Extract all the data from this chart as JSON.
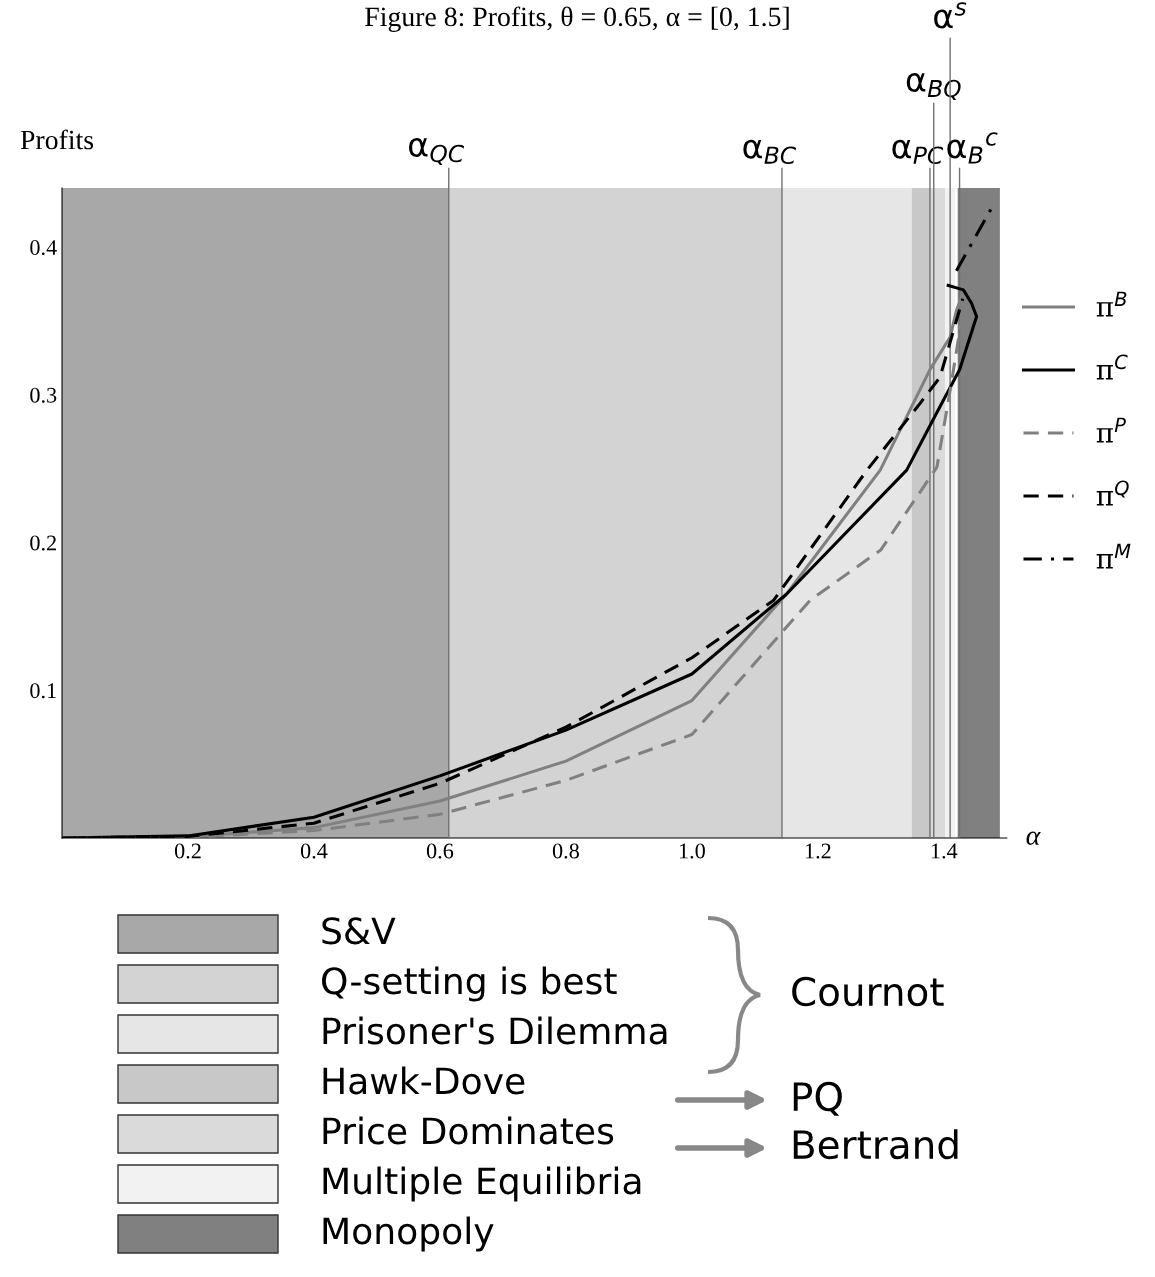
{
  "chart_data": {
    "type": "line",
    "title": "Figure 8: Profits, θ = 0.65, α = [0, 1.5]",
    "xlabel": "α",
    "ylabel": "Profits",
    "xlim": [
      0,
      1.5
    ],
    "ylim": [
      0,
      0.44
    ],
    "xticks": [
      0.2,
      0.4,
      0.6,
      0.8,
      {
        "value": 1,
        "label": "1.0"
      },
      1.2,
      1.4
    ],
    "yticks": [
      0.1,
      0.2,
      0.3,
      0.4
    ],
    "grid": false,
    "legend": "right",
    "marker": "none",
    "series": [
      {
        "name": "π$^{B}$",
        "color": "#808080",
        "line_style": "solid",
        "x": [
          0,
          0.2,
          0.4,
          0.6,
          0.8,
          1.0,
          1.15,
          1.299,
          1.378,
          1.41,
          1.42,
          1.428
        ],
        "values": [
          0,
          0.0008,
          0.007,
          0.025,
          0.052,
          0.093,
          0.165,
          0.249,
          0.317,
          0.339,
          0.357,
          0.366
        ]
      },
      {
        "name": "π$^{C}$",
        "color": "#000000",
        "line_style": "solid",
        "x": [
          0,
          0.2,
          0.4,
          0.6,
          0.8,
          1.0,
          1.15,
          1.341,
          1.389,
          1.425,
          1.452,
          1.444,
          1.431,
          1.407
        ],
        "values": [
          0,
          0.0014,
          0.014,
          0.042,
          0.073,
          0.111,
          0.165,
          0.249,
          0.288,
          0.317,
          0.353,
          0.362,
          0.371,
          0.374
        ]
      },
      {
        "name": "π$^{P}$",
        "color": "#808080",
        "line_style": "dashed",
        "x": [
          0,
          0.2,
          0.4,
          0.6,
          0.8,
          1.0,
          1.188,
          1.3,
          1.389,
          1.412,
          1.428,
          1.43
        ],
        "values": [
          0,
          0.0005,
          0.005,
          0.016,
          0.039,
          0.07,
          0.161,
          0.195,
          0.251,
          0.308,
          0.351,
          0.366
        ]
      },
      {
        "name": "π$^{Q}$",
        "color": "#000000",
        "line_style": "dashed",
        "x": [
          0,
          0.2,
          0.4,
          0.6,
          0.8,
          1.0,
          1.13,
          1.278,
          1.362,
          1.394,
          1.43
        ],
        "values": [
          0,
          0.001,
          0.01,
          0.037,
          0.075,
          0.122,
          0.161,
          0.249,
          0.294,
          0.312,
          0.365
        ]
      },
      {
        "name": "π$^{M}$",
        "color": "#000000",
        "line_style": "dashdot",
        "x": [
          1.42,
          1.478
        ],
        "values": [
          0.384,
          0.428
        ]
      }
    ],
    "bands": [
      {
        "axis": "x",
        "from": 0,
        "to": 0.614,
        "label": "S&V",
        "color": "#a8a8a8"
      },
      {
        "axis": "x",
        "from": 0.614,
        "to": 1.143,
        "label": "Q-setting is best",
        "color": "#d3d3d3"
      },
      {
        "axis": "x",
        "from": 1.143,
        "to": 1.349,
        "label": "Prisoner's Dilemma",
        "color": "#e6e6e6"
      },
      {
        "axis": "x",
        "from": 1.349,
        "to": 1.378,
        "label": "Hawk-Dove",
        "color": "#c8c8c8"
      },
      {
        "axis": "x",
        "from": 1.378,
        "to": 1.402,
        "label": "Price Dominates",
        "color": "#dadada"
      },
      {
        "axis": "x",
        "from": 1.402,
        "to": 1.418,
        "label": "Multiple Equilibria",
        "color": "#f2f2f2"
      },
      {
        "axis": "x",
        "from": 1.422,
        "to": 1.489,
        "label": "Monopoly",
        "color": "#808080"
      }
    ],
    "ref_lines": [
      {
        "axis": "x",
        "value": 0.614,
        "label": "α$_{QC}$"
      },
      {
        "axis": "x",
        "value": 1.143,
        "label": "α$_{BC}$"
      },
      {
        "axis": "x",
        "value": 1.378,
        "label": "α$_{PC}$"
      },
      {
        "axis": "x",
        "value": 1.384,
        "label": "α$_{BQ}$"
      },
      {
        "axis": "x",
        "value": 1.41,
        "label": "α$^{s}$"
      },
      {
        "axis": "x",
        "value": 1.425,
        "label": "α$_{B}$$^{c}$"
      }
    ],
    "annotations": [
      "Cournot",
      "PQ",
      "Bertrand"
    ]
  }
}
